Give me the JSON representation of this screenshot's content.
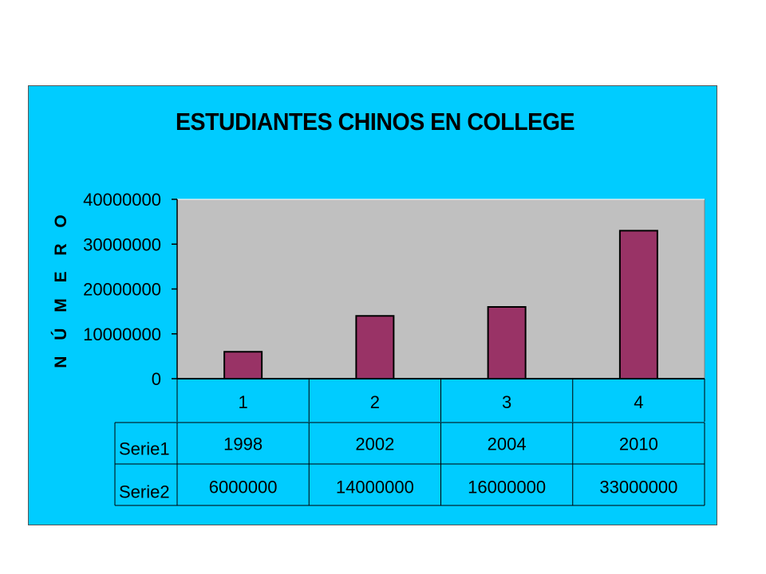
{
  "chart_data": {
    "type": "bar",
    "title": "ESTUDIANTES CHINOS EN COLLEGE",
    "ylabel": "N Ú M E R O",
    "xlabel": "",
    "categories": [
      "1",
      "2",
      "3",
      "4"
    ],
    "series": [
      {
        "name": "Serie2",
        "values": [
          6000000,
          14000000,
          16000000,
          33000000
        ]
      }
    ],
    "yticks": [
      "0",
      "10000000",
      "20000000",
      "30000000",
      "40000000"
    ],
    "ylim": [
      0,
      40000000
    ],
    "grid": false,
    "legend": "none",
    "data_table": {
      "rows": [
        {
          "label": "Serie1",
          "cells": [
            "1998",
            "2002",
            "2004",
            "2010"
          ]
        },
        {
          "label": "Serie2",
          "cells": [
            "6000000",
            "14000000",
            "16000000",
            "33000000"
          ]
        }
      ]
    }
  },
  "colors": {
    "chart_area": "#00ccff",
    "plot_area": "#c0c0c0",
    "bar": "#993366"
  }
}
